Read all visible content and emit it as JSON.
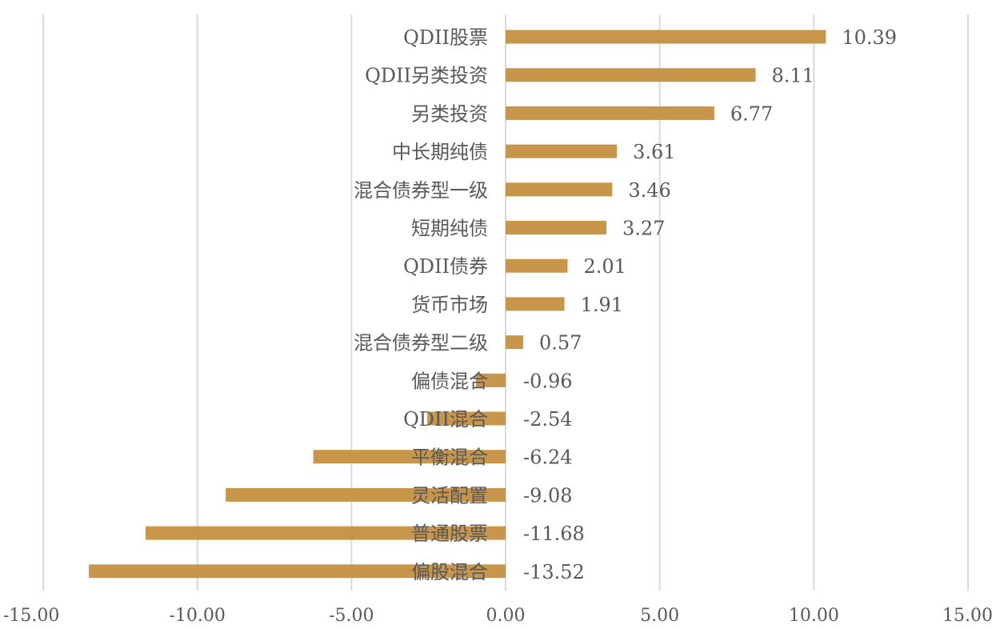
{
  "chart_data": {
    "type": "bar",
    "orientation": "horizontal",
    "categories": [
      "QDII股票",
      "QDII另类投资",
      "另类投资",
      "中长期纯债",
      "混合债券型一级",
      "短期纯债",
      "QDII债券",
      "货币市场",
      "混合债券型二级",
      "偏债混合",
      "QDII混合",
      "平衡混合",
      "灵活配置",
      "普通股票",
      "偏股混合"
    ],
    "values": [
      10.39,
      8.11,
      6.77,
      3.61,
      3.46,
      3.27,
      2.01,
      1.91,
      0.57,
      -0.96,
      -2.54,
      -6.24,
      -9.08,
      -11.68,
      -13.52
    ],
    "value_labels": [
      "10.39",
      "8.11",
      "6.77",
      "3.61",
      "3.46",
      "3.27",
      "2.01",
      "1.91",
      "0.57",
      "-0.96",
      "-2.54",
      "-6.24",
      "-9.08",
      "-11.68",
      "-13.52"
    ],
    "x_ticks": [
      -15,
      -10,
      -5,
      0,
      5,
      10,
      15
    ],
    "x_tick_labels": [
      "-15.00",
      "-10.00",
      "-5.00",
      "0.00",
      "5.00",
      "10.00",
      "15.00"
    ],
    "xlim": [
      -15,
      15
    ],
    "grid": "vertical",
    "legend": "none",
    "bar_color": "#c8964a",
    "grid_color": "#d9d9d9",
    "text_color": "#595959",
    "title": "",
    "xlabel": "",
    "ylabel": ""
  }
}
